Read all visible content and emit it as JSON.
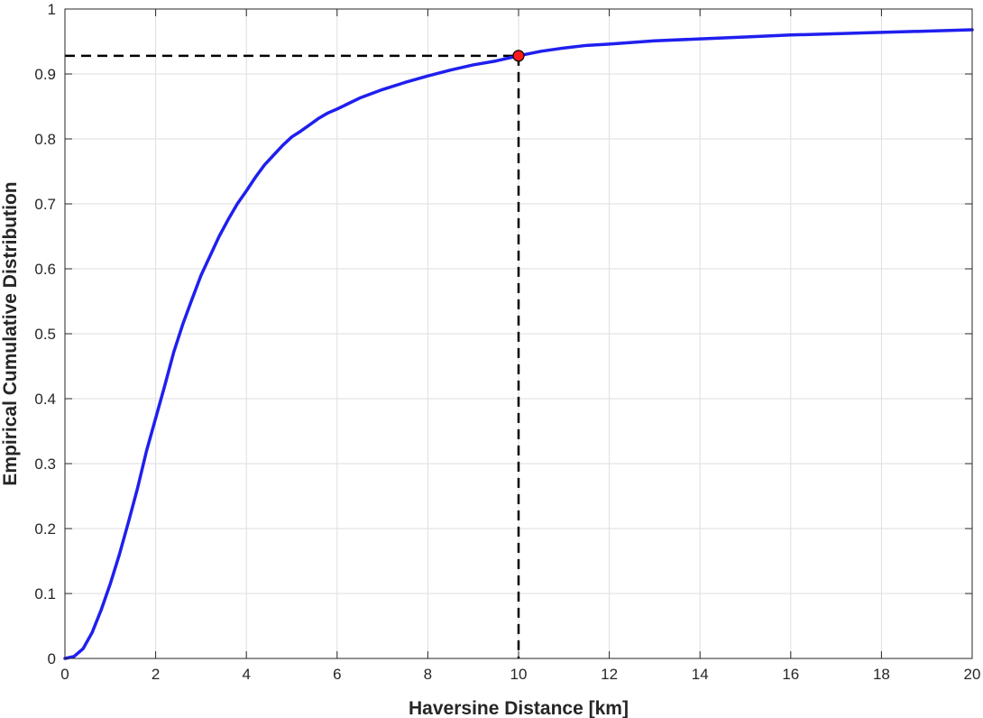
{
  "chart_data": {
    "type": "line",
    "title": "",
    "xlabel": "Haversine Distance [km]",
    "ylabel": "Empirical Cumulative Distribution",
    "xlim": [
      0,
      20
    ],
    "ylim": [
      0,
      1
    ],
    "xticks": [
      0,
      2,
      4,
      6,
      8,
      10,
      12,
      14,
      16,
      18,
      20
    ],
    "yticks": [
      0,
      0.1,
      0.2,
      0.3,
      0.4,
      0.5,
      0.6,
      0.7,
      0.8,
      0.9,
      1
    ],
    "xtick_labels": [
      "0",
      "2",
      "4",
      "6",
      "8",
      "10",
      "12",
      "14",
      "16",
      "18",
      "20"
    ],
    "ytick_labels": [
      "0",
      "0.1",
      "0.2",
      "0.3",
      "0.4",
      "0.5",
      "0.6",
      "0.7",
      "0.8",
      "0.9",
      "1"
    ],
    "grid": true,
    "series": [
      {
        "color": "#1f1fef",
        "x": [
          0,
          0.2,
          0.4,
          0.6,
          0.8,
          1.0,
          1.2,
          1.4,
          1.6,
          1.8,
          2.0,
          2.2,
          2.4,
          2.6,
          2.8,
          3.0,
          3.2,
          3.4,
          3.6,
          3.8,
          4.0,
          4.2,
          4.4,
          4.6,
          4.8,
          5.0,
          5.2,
          5.4,
          5.6,
          5.8,
          6.0,
          6.5,
          7.0,
          7.5,
          8.0,
          8.5,
          9.0,
          9.5,
          10.0,
          10.5,
          11.0,
          11.5,
          12.0,
          13.0,
          14.0,
          15.0,
          16.0,
          17.0,
          18.0,
          19.0,
          20.0
        ],
        "y": [
          0,
          0.003,
          0.015,
          0.04,
          0.075,
          0.115,
          0.16,
          0.21,
          0.262,
          0.32,
          0.37,
          0.42,
          0.472,
          0.515,
          0.553,
          0.59,
          0.62,
          0.65,
          0.676,
          0.7,
          0.72,
          0.741,
          0.76,
          0.775,
          0.79,
          0.803,
          0.812,
          0.822,
          0.832,
          0.84,
          0.846,
          0.863,
          0.876,
          0.887,
          0.897,
          0.906,
          0.914,
          0.92,
          0.928,
          0.935,
          0.94,
          0.944,
          0.946,
          0.951,
          0.954,
          0.957,
          0.96,
          0.962,
          0.964,
          0.966,
          0.968
        ]
      }
    ],
    "highlight_point": {
      "x": 10,
      "y": 0.928,
      "color": "#ff1a1a"
    },
    "reference_lines_color": "#000000"
  }
}
